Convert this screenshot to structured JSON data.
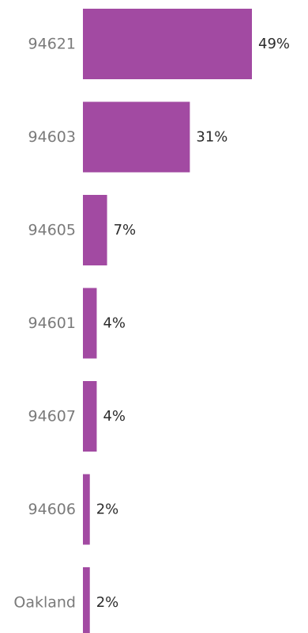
{
  "chart_data": {
    "type": "bar",
    "orientation": "horizontal",
    "categories": [
      "94621",
      "94603",
      "94605",
      "94601",
      "94607",
      "94606",
      "Oakland"
    ],
    "values": [
      49,
      31,
      7,
      4,
      4,
      2,
      2
    ],
    "value_labels": [
      "49%",
      "31%",
      "7%",
      "4%",
      "4%",
      "2%",
      "2%"
    ],
    "unit": "%",
    "xlim": [
      0,
      49
    ],
    "grid": false,
    "bar_color": "#a24aa2"
  }
}
